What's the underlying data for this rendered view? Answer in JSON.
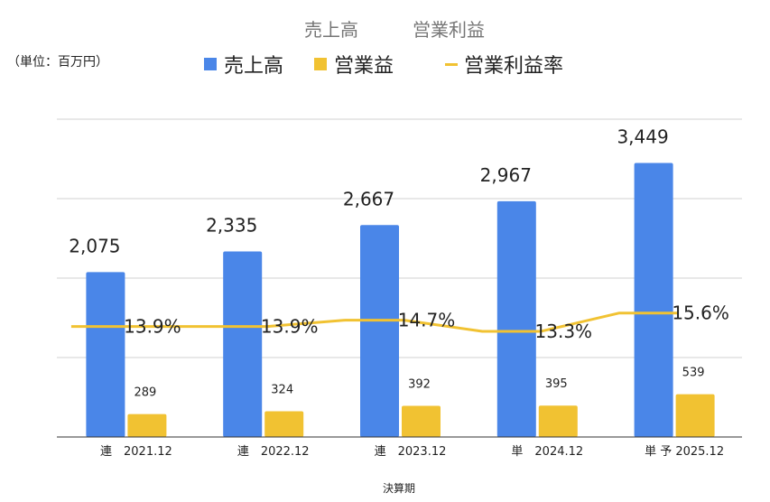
{
  "chart_data": {
    "type": "bar",
    "title_left": "売上高",
    "title_right": "営業利益",
    "unit_note": "（単位：百万円）",
    "xlabel": "決算期",
    "categories": [
      "連　2021.12",
      "連　2022.12",
      "連　2023.12",
      "単　2024.12",
      "単 予 2025.12"
    ],
    "series": [
      {
        "name": "売上高",
        "type": "bar",
        "color": "#4a86e8",
        "values": [
          2075,
          2335,
          2667,
          2967,
          3449
        ],
        "labels": [
          "2,075",
          "2,335",
          "2,667",
          "2,967",
          "3,449"
        ]
      },
      {
        "name": "営業益",
        "type": "bar",
        "color": "#f1c232",
        "values": [
          289,
          324,
          392,
          395,
          539
        ],
        "labels": [
          "289",
          "324",
          "392",
          "395",
          "539"
        ]
      },
      {
        "name": "営業利益率",
        "type": "line",
        "color": "#f1c232",
        "values": [
          13.9,
          13.9,
          14.7,
          13.3,
          15.6
        ],
        "labels": [
          "13.9%",
          "13.9%",
          "14.7%",
          "13.3%",
          "15.6%"
        ]
      }
    ],
    "ylim": [
      0,
      4000
    ],
    "y2lim": [
      0,
      40
    ],
    "grid": true,
    "legend_position": "top"
  }
}
